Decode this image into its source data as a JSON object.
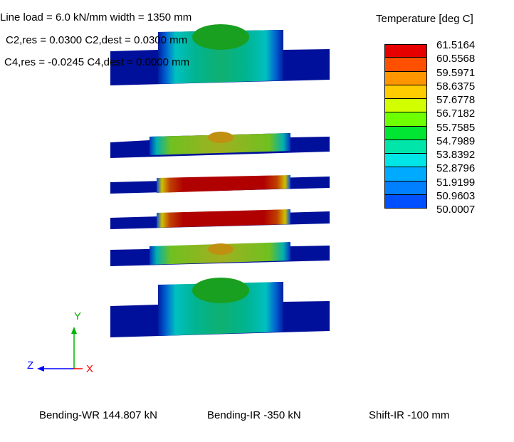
{
  "header": {
    "line1": "Line load = 6.0 kN/mm  width = 1350 mm",
    "line2": "C2,res = 0.0300  C2,dest = 0.0300 mm",
    "line3": "C4,res = -0.0245  C4,dest = 0.0000 mm"
  },
  "legend": {
    "title": "Temperature [deg C]",
    "values": [
      "61.5164",
      "60.5568",
      "59.5971",
      "58.6375",
      "57.6778",
      "56.7182",
      "55.7585",
      "54.7989",
      "53.8392",
      "52.8796",
      "51.9199",
      "50.9603",
      "50.0007"
    ],
    "colors": [
      "#e60000",
      "#ff5000",
      "#ff9600",
      "#ffcc00",
      "#d2ff00",
      "#6eff00",
      "#00e632",
      "#00e6aa",
      "#00e6e6",
      "#00aaff",
      "#0080ff",
      "#0050ff",
      "#0000ff"
    ]
  },
  "axes": {
    "y": "Y",
    "z": "Z",
    "x": "X",
    "y_color": "#00b400",
    "x_color": "#ff0000",
    "z_color": "#0000ff"
  },
  "footer": {
    "bending_wr": "Bending-WR 144.807 kN",
    "bending_ir": "Bending-IR -350 kN",
    "shift_ir": "Shift-IR -100 mm"
  }
}
